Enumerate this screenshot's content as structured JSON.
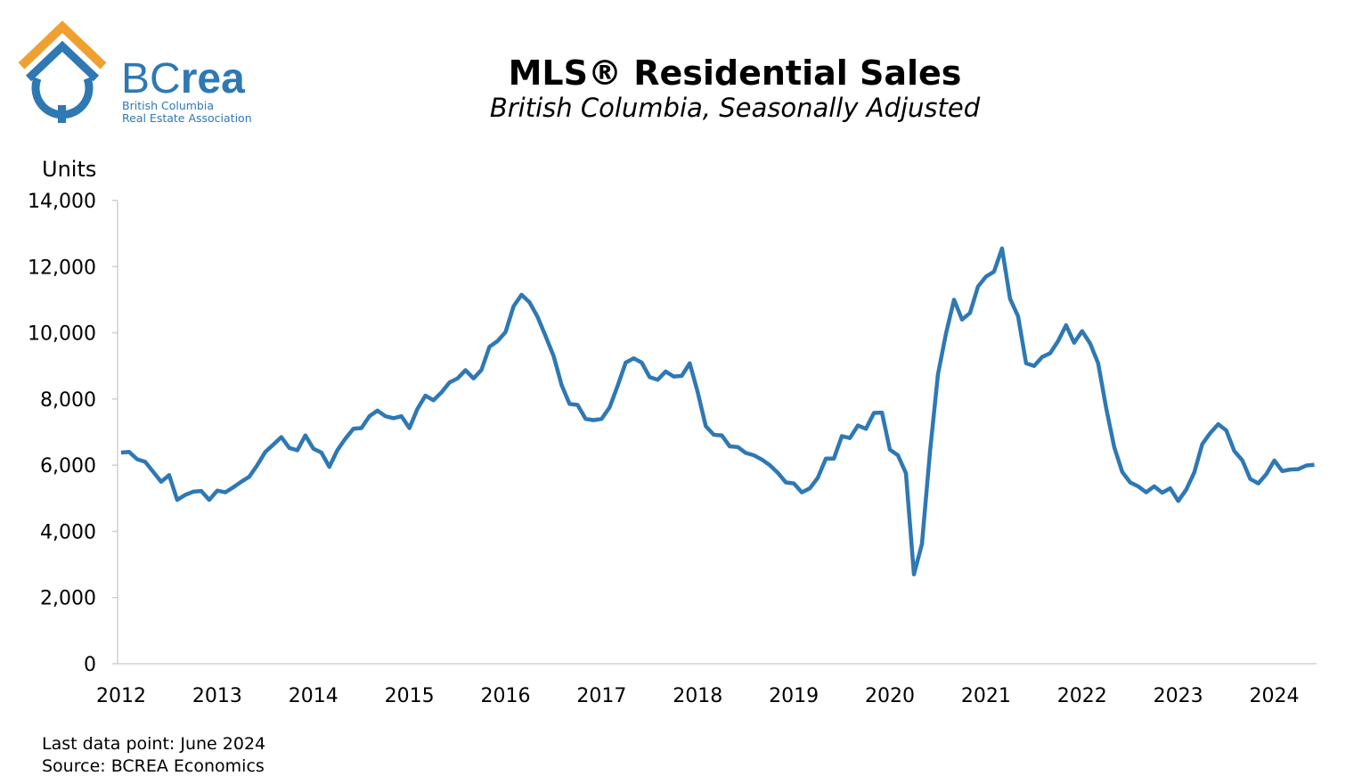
{
  "logo": {
    "wordmark_bc": "BC",
    "wordmark_rea": "rea",
    "line1": "British Columbia",
    "line2": "Real Estate Association",
    "roof_color": "#F0A030",
    "house_color": "#2E78B4"
  },
  "footer": {
    "last_data_point": "Last data point: June 2024",
    "source": "Source: BCREA Economics"
  },
  "chart_data": {
    "type": "line",
    "title": "MLS® Residential Sales",
    "subtitle": "British Columbia, Seasonally Adjusted",
    "ylabel": "Units",
    "xlabel": "",
    "ylim": [
      0,
      14000
    ],
    "yticks": [
      0,
      2000,
      4000,
      6000,
      8000,
      10000,
      12000,
      14000
    ],
    "ytick_labels": [
      "0",
      "2,000",
      "4,000",
      "6,000",
      "8,000",
      "10,000",
      "12,000",
      "14,000"
    ],
    "xtick_labels": [
      "2012",
      "2013",
      "2014",
      "2015",
      "2016",
      "2017",
      "2018",
      "2019",
      "2020",
      "2021",
      "2022",
      "2023",
      "2024"
    ],
    "x_start": "2012-01",
    "frequency": "monthly",
    "grid": false,
    "series": [
      {
        "name": "MLS® Residential Sales",
        "color": "#2E78B4",
        "values": [
          6380,
          6400,
          6180,
          6100,
          5800,
          5500,
          5700,
          4950,
          5100,
          5200,
          5220,
          4950,
          5230,
          5180,
          5330,
          5500,
          5650,
          6000,
          6400,
          6620,
          6850,
          6520,
          6450,
          6900,
          6500,
          6380,
          5950,
          6450,
          6800,
          7100,
          7120,
          7480,
          7650,
          7480,
          7420,
          7480,
          7120,
          7700,
          8100,
          7960,
          8200,
          8500,
          8620,
          8870,
          8620,
          8880,
          9580,
          9750,
          10020,
          10800,
          11150,
          10920,
          10480,
          9900,
          9300,
          8420,
          7850,
          7820,
          7400,
          7360,
          7400,
          7750,
          8400,
          9100,
          9230,
          9100,
          8660,
          8580,
          8830,
          8680,
          8700,
          9080,
          8200,
          7180,
          6920,
          6900,
          6570,
          6550,
          6370,
          6300,
          6170,
          6000,
          5770,
          5480,
          5450,
          5180,
          5300,
          5620,
          6200,
          6200,
          6880,
          6820,
          7200,
          7100,
          7580,
          7590,
          6470,
          6300,
          5760,
          2700,
          3620,
          6400,
          8750,
          9980,
          11000,
          10400,
          10600,
          11400,
          11700,
          11850,
          12550,
          11030,
          10500,
          9080,
          9000,
          9270,
          9380,
          9750,
          10230,
          9700,
          10050,
          9680,
          9080,
          7730,
          6550,
          5800,
          5480,
          5360,
          5180,
          5360,
          5170,
          5300,
          4920,
          5260,
          5780,
          6640,
          6970,
          7240,
          7050,
          6430,
          6150,
          5580,
          5450,
          5730,
          6140,
          5820,
          5870,
          5880,
          5990,
          6010
        ]
      }
    ]
  }
}
